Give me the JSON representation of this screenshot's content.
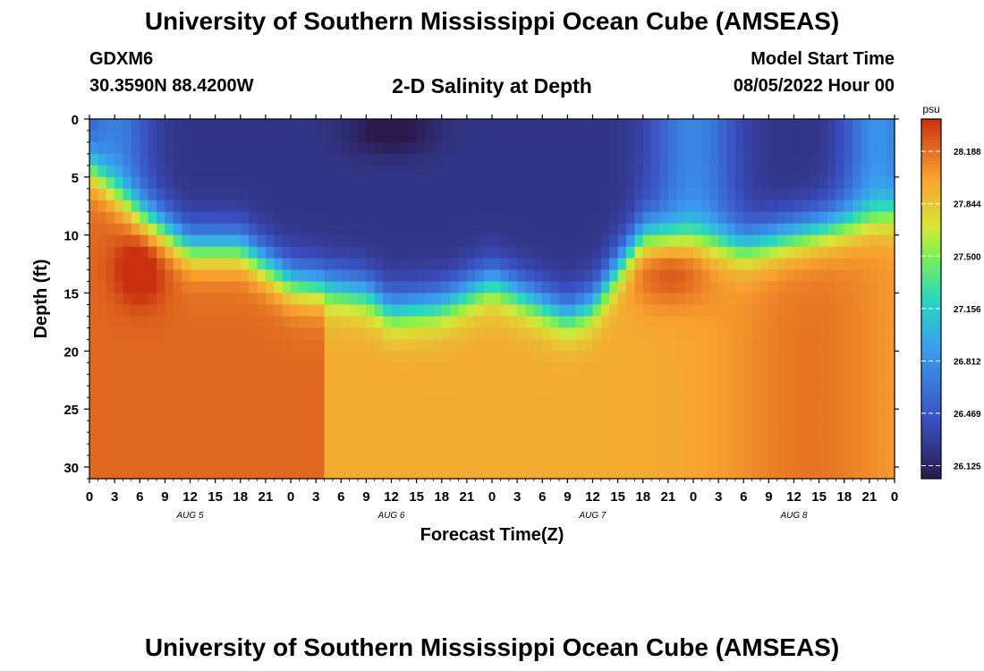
{
  "header": {
    "title": "University of Southern Mississippi Ocean Cube (AMSEAS)",
    "station": "GDXM6",
    "coords": "30.3590N  88.4200W",
    "subtitle": "2-D Salinity at Depth",
    "model_label": "Model Start Time",
    "model_time": "08/05/2022 Hour 00"
  },
  "footer": {
    "title": "University of Southern Mississippi Ocean Cube (AMSEAS)"
  },
  "chart_data": {
    "type": "heatmap",
    "title": "2-D Salinity at Depth",
    "xlabel": "Forecast Time(Z)",
    "ylabel": "Depth (ft)",
    "ylim": [
      0,
      31
    ],
    "x_range_hours": [
      0,
      96
    ],
    "y_ticks": [
      0,
      5,
      10,
      15,
      20,
      25,
      30
    ],
    "x_tick_labels": [
      "0",
      "3",
      "6",
      "9",
      "12",
      "15",
      "18",
      "21",
      "0",
      "3",
      "6",
      "9",
      "12",
      "15",
      "18",
      "21",
      "0",
      "3",
      "6",
      "9",
      "12",
      "15",
      "18",
      "21",
      "0",
      "3",
      "6",
      "9",
      "12",
      "15",
      "18",
      "21",
      "0"
    ],
    "day_labels": [
      "AUG 5",
      "AUG 6",
      "AUG 7",
      "AUG 8"
    ],
    "colorbar": {
      "unit": "psu",
      "min": 26.04,
      "max": 28.4,
      "ticks": [
        "28.188",
        "27.844",
        "27.500",
        "27.156",
        "26.812",
        "26.469",
        "26.125"
      ]
    },
    "colors": {
      "purple": "#2a1a4a",
      "blue": "#3a4fc0",
      "sky": "#3a9ef0",
      "cyan": "#28d8c0",
      "green": "#80f050",
      "yellow": "#d8e838",
      "orange": "#f8a030",
      "red": "#c83010"
    }
  }
}
